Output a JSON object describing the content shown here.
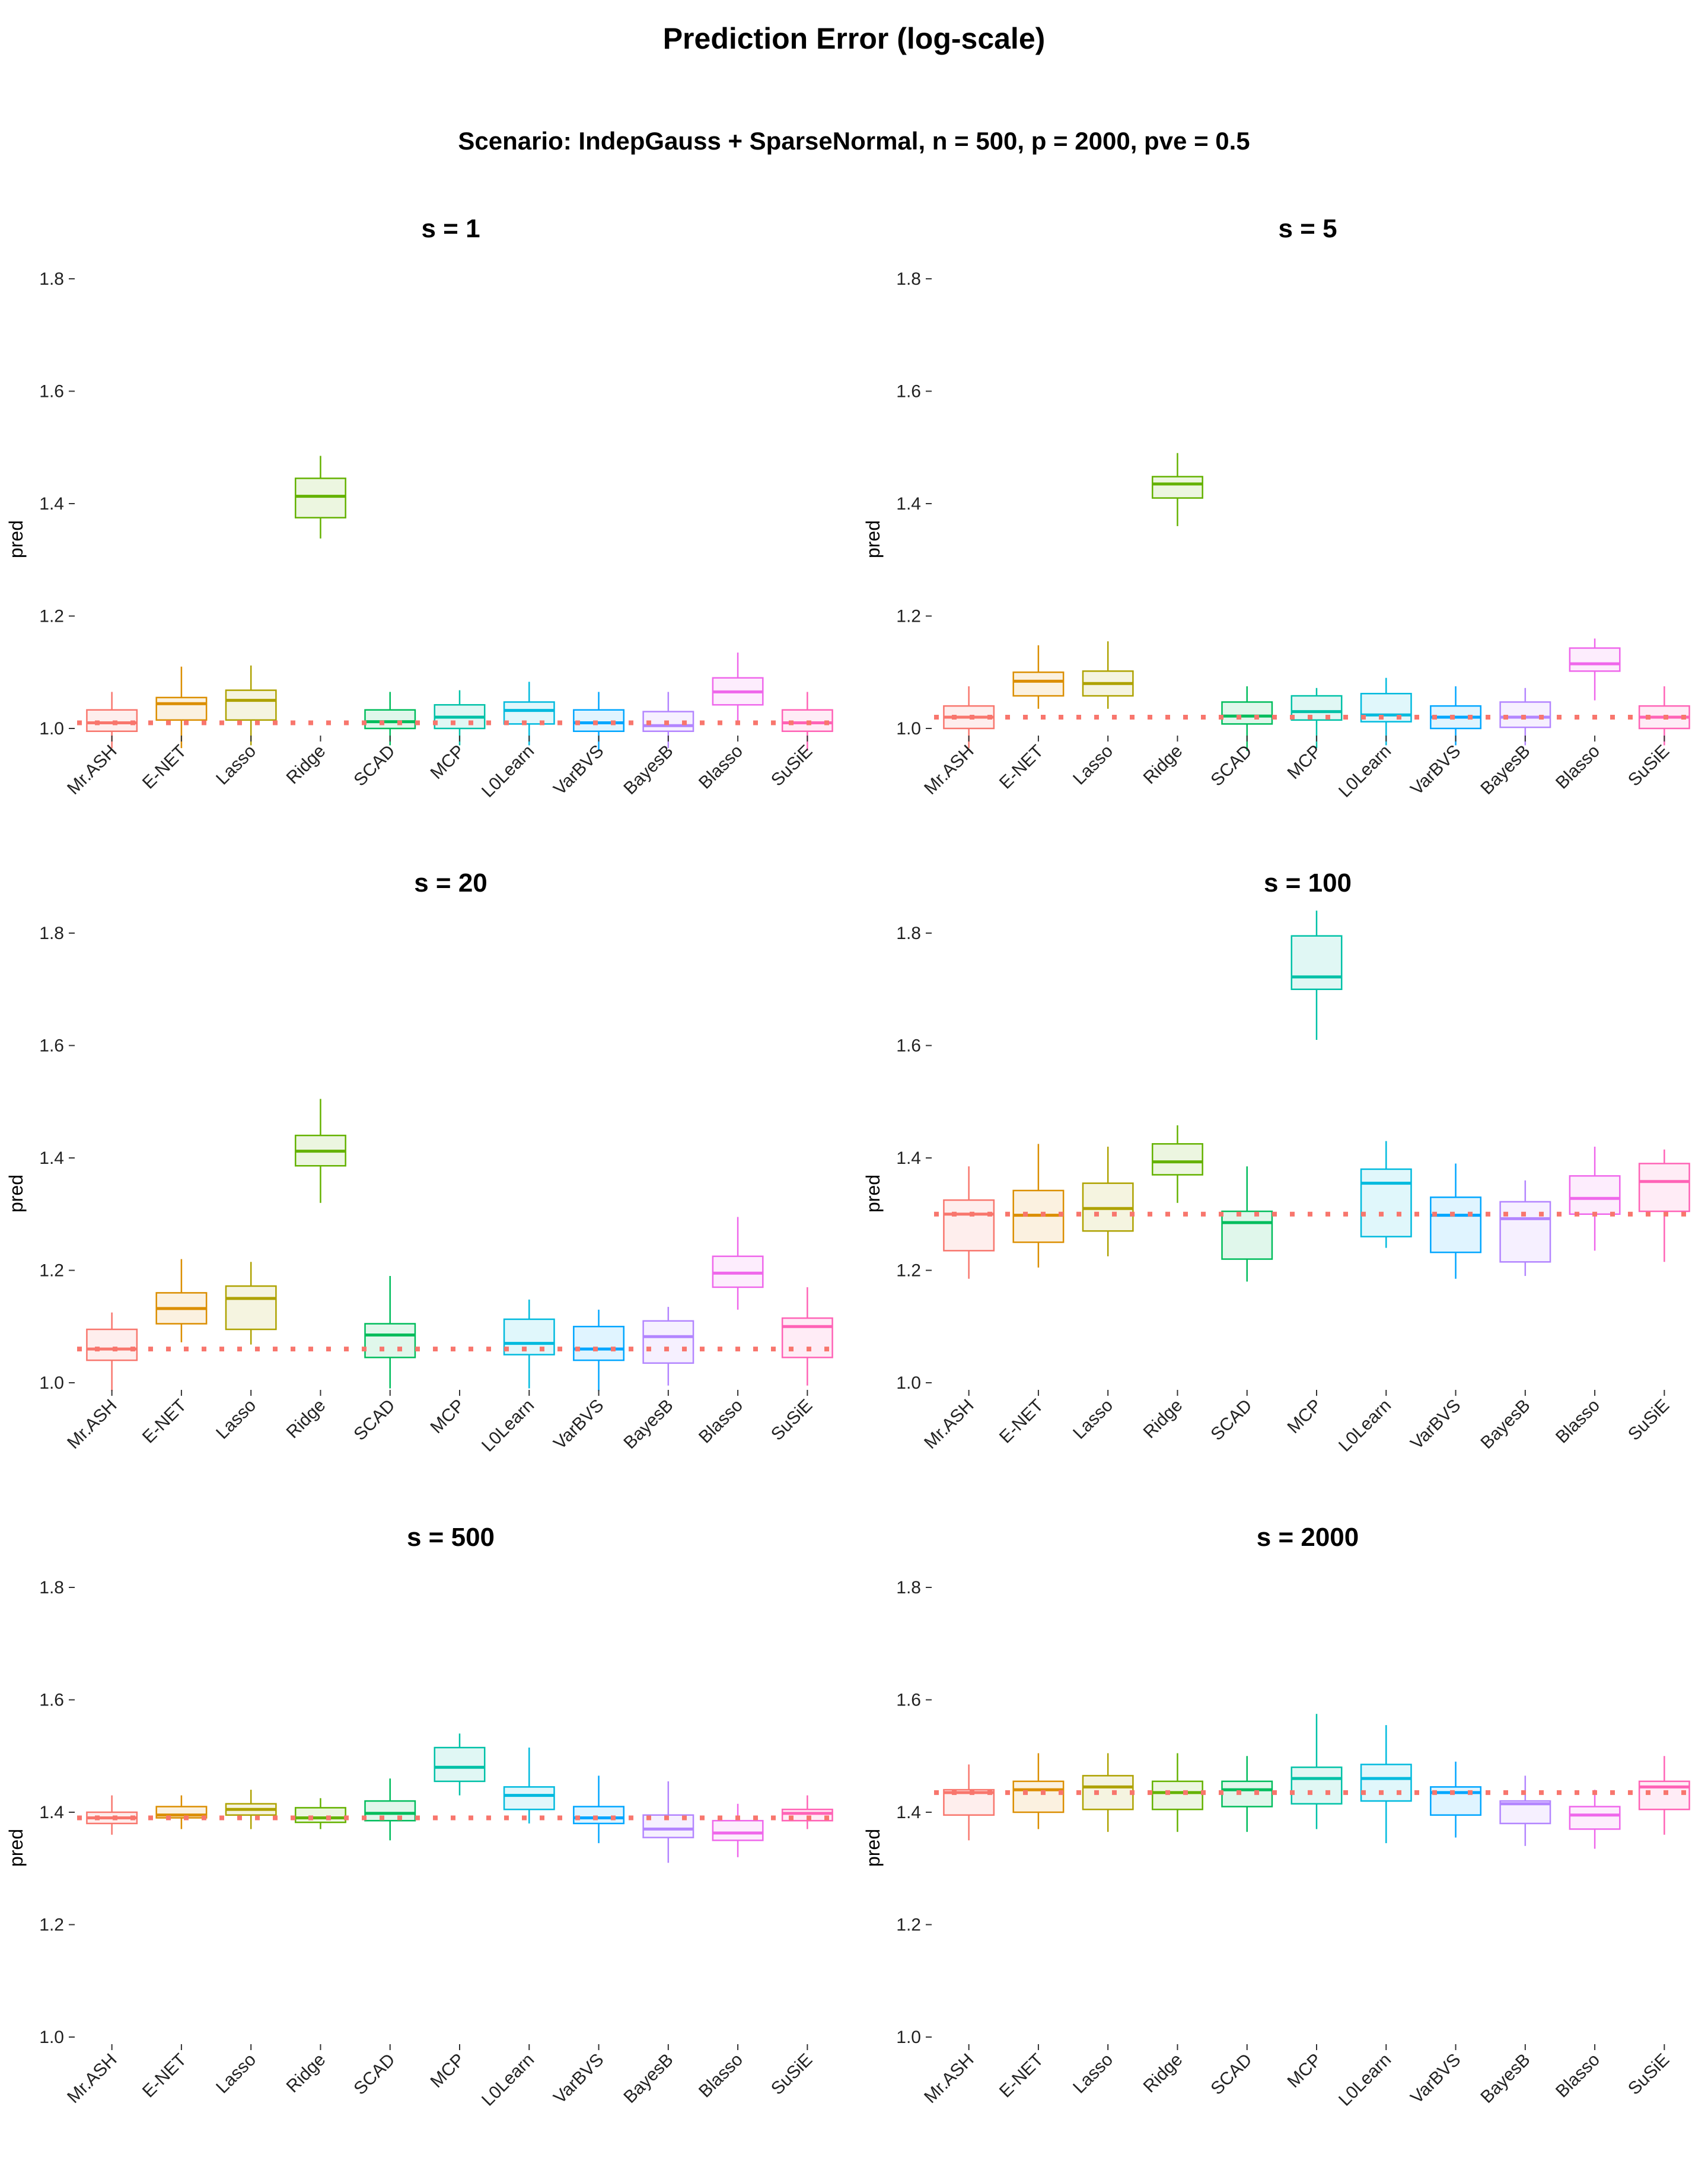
{
  "title": "Prediction Error (log-scale)",
  "subtitle": "Scenario: IndepGauss + SparseNormal, n = 500, p = 2000, pve = 0.5",
  "chart_data": {
    "type": "boxplot",
    "ylabel": "pred",
    "ylim": [
      1.0,
      1.8
    ],
    "yticks": [
      1.0,
      1.2,
      1.4,
      1.6,
      1.8
    ],
    "ytick_labels": [
      "1.0",
      "1.2",
      "1.4",
      "1.6",
      "1.8"
    ],
    "methods": [
      "Mr.ASH",
      "E-NET",
      "Lasso",
      "Ridge",
      "SCAD",
      "MCP",
      "L0Learn",
      "VarBVS",
      "BayesB",
      "Blasso",
      "SuSiE"
    ],
    "colors": [
      "#F8766D",
      "#DB8E00",
      "#AEA200",
      "#64B200",
      "#00BD5C",
      "#00C1A7",
      "#00BADE",
      "#00A6FF",
      "#B385FF",
      "#EF67EB",
      "#FF63B6"
    ],
    "reference_line_color": "#F8766D",
    "panels": [
      {
        "title": "s = 1",
        "reference": 1.01,
        "boxes": [
          {
            "min": 0.965,
            "q1": 0.995,
            "median": 1.01,
            "q3": 1.033,
            "max": 1.065
          },
          {
            "min": 0.965,
            "q1": 1.015,
            "median": 1.044,
            "q3": 1.055,
            "max": 1.11
          },
          {
            "min": 0.97,
            "q1": 1.015,
            "median": 1.05,
            "q3": 1.068,
            "max": 1.112
          },
          {
            "min": 1.338,
            "q1": 1.375,
            "median": 1.413,
            "q3": 1.445,
            "max": 1.485
          },
          {
            "min": 0.97,
            "q1": 1.0,
            "median": 1.012,
            "q3": 1.033,
            "max": 1.065
          },
          {
            "min": 0.97,
            "q1": 1.0,
            "median": 1.02,
            "q3": 1.042,
            "max": 1.068
          },
          {
            "min": 0.97,
            "q1": 1.008,
            "median": 1.032,
            "q3": 1.047,
            "max": 1.083
          },
          {
            "min": 0.96,
            "q1": 0.995,
            "median": 1.01,
            "q3": 1.033,
            "max": 1.065
          },
          {
            "min": 0.965,
            "q1": 0.995,
            "median": 1.005,
            "q3": 1.03,
            "max": 1.065
          },
          {
            "min": 1.01,
            "q1": 1.042,
            "median": 1.065,
            "q3": 1.09,
            "max": 1.135
          },
          {
            "min": 0.96,
            "q1": 0.995,
            "median": 1.01,
            "q3": 1.033,
            "max": 1.065
          }
        ]
      },
      {
        "title": "s = 5",
        "reference": 1.02,
        "boxes": [
          {
            "min": 0.965,
            "q1": 1.0,
            "median": 1.02,
            "q3": 1.04,
            "max": 1.075
          },
          {
            "min": 1.035,
            "q1": 1.058,
            "median": 1.084,
            "q3": 1.1,
            "max": 1.148
          },
          {
            "min": 1.035,
            "q1": 1.058,
            "median": 1.08,
            "q3": 1.102,
            "max": 1.155
          },
          {
            "min": 1.36,
            "q1": 1.41,
            "median": 1.435,
            "q3": 1.448,
            "max": 1.49
          },
          {
            "min": 0.96,
            "q1": 1.008,
            "median": 1.022,
            "q3": 1.047,
            "max": 1.075
          },
          {
            "min": 0.965,
            "q1": 1.015,
            "median": 1.03,
            "q3": 1.058,
            "max": 1.072
          },
          {
            "min": 0.97,
            "q1": 1.012,
            "median": 1.024,
            "q3": 1.062,
            "max": 1.09
          },
          {
            "min": 0.97,
            "q1": 1.0,
            "median": 1.02,
            "q3": 1.04,
            "max": 1.075
          },
          {
            "min": 0.97,
            "q1": 1.002,
            "median": 1.02,
            "q3": 1.047,
            "max": 1.072
          },
          {
            "min": 1.05,
            "q1": 1.102,
            "median": 1.115,
            "q3": 1.143,
            "max": 1.16
          },
          {
            "min": 0.97,
            "q1": 1.0,
            "median": 1.02,
            "q3": 1.04,
            "max": 1.075
          }
        ]
      },
      {
        "title": "s = 20",
        "reference": 1.06,
        "boxes": [
          {
            "min": 0.985,
            "q1": 1.04,
            "median": 1.06,
            "q3": 1.095,
            "max": 1.125
          },
          {
            "min": 1.072,
            "q1": 1.105,
            "median": 1.132,
            "q3": 1.16,
            "max": 1.22
          },
          {
            "min": 1.068,
            "q1": 1.095,
            "median": 1.15,
            "q3": 1.172,
            "max": 1.215
          },
          {
            "min": 1.32,
            "q1": 1.386,
            "median": 1.412,
            "q3": 1.44,
            "max": 1.505
          },
          {
            "min": 0.99,
            "q1": 1.045,
            "median": 1.085,
            "q3": 1.105,
            "max": 1.19
          },
          {
            "min": 0.99,
            "q1": 1.05,
            "median": 1.07,
            "q3": 1.113,
            "max": 1.148
          },
          {
            "min": 0.985,
            "q1": 1.04,
            "median": 1.06,
            "q3": 1.1,
            "max": 1.13
          },
          {
            "min": 0.995,
            "q1": 1.035,
            "median": 1.082,
            "q3": 1.11,
            "max": 1.135
          },
          {
            "min": 1.13,
            "q1": 1.17,
            "median": 1.195,
            "q3": 1.225,
            "max": 1.295
          },
          {
            "min": 0.995,
            "q1": 1.045,
            "median": 1.1,
            "q3": 1.115,
            "max": 1.17
          }
        ],
        "box_methods": [
          "Mr.ASH",
          "E-NET",
          "Lasso",
          "Ridge",
          "SCAD",
          "L0Learn",
          "VarBVS",
          "BayesB",
          "Blasso",
          "SuSiE"
        ]
      },
      {
        "title": "s = 100",
        "reference": 1.3,
        "boxes": [
          {
            "min": 1.185,
            "q1": 1.235,
            "median": 1.3,
            "q3": 1.325,
            "max": 1.385
          },
          {
            "min": 1.205,
            "q1": 1.25,
            "median": 1.298,
            "q3": 1.342,
            "max": 1.425
          },
          {
            "min": 1.225,
            "q1": 1.27,
            "median": 1.31,
            "q3": 1.355,
            "max": 1.42
          },
          {
            "min": 1.32,
            "q1": 1.37,
            "median": 1.393,
            "q3": 1.425,
            "max": 1.458
          },
          {
            "min": 1.18,
            "q1": 1.22,
            "median": 1.285,
            "q3": 1.305,
            "max": 1.385
          },
          {
            "min": 1.61,
            "q1": 1.7,
            "median": 1.722,
            "q3": 1.795,
            "max": 1.84
          },
          {
            "min": 1.24,
            "q1": 1.26,
            "median": 1.355,
            "q3": 1.38,
            "max": 1.43
          },
          {
            "min": 1.185,
            "q1": 1.232,
            "median": 1.298,
            "q3": 1.33,
            "max": 1.39
          },
          {
            "min": 1.19,
            "q1": 1.215,
            "median": 1.292,
            "q3": 1.322,
            "max": 1.36
          },
          {
            "min": 1.235,
            "q1": 1.3,
            "median": 1.328,
            "q3": 1.368,
            "max": 1.42
          },
          {
            "min": 1.215,
            "q1": 1.305,
            "median": 1.358,
            "q3": 1.39,
            "max": 1.415
          }
        ]
      },
      {
        "title": "s = 500",
        "reference": 1.39,
        "boxes": [
          {
            "min": 1.36,
            "q1": 1.38,
            "median": 1.39,
            "q3": 1.4,
            "max": 1.43
          },
          {
            "min": 1.37,
            "q1": 1.39,
            "median": 1.395,
            "q3": 1.41,
            "max": 1.43
          },
          {
            "min": 1.37,
            "q1": 1.395,
            "median": 1.405,
            "q3": 1.415,
            "max": 1.44
          },
          {
            "min": 1.37,
            "q1": 1.382,
            "median": 1.39,
            "q3": 1.408,
            "max": 1.425
          },
          {
            "min": 1.35,
            "q1": 1.385,
            "median": 1.398,
            "q3": 1.42,
            "max": 1.46
          },
          {
            "min": 1.43,
            "q1": 1.455,
            "median": 1.48,
            "q3": 1.515,
            "max": 1.54
          },
          {
            "min": 1.38,
            "q1": 1.405,
            "median": 1.43,
            "q3": 1.445,
            "max": 1.515
          },
          {
            "min": 1.345,
            "q1": 1.38,
            "median": 1.39,
            "q3": 1.41,
            "max": 1.465
          },
          {
            "min": 1.31,
            "q1": 1.355,
            "median": 1.37,
            "q3": 1.395,
            "max": 1.455
          },
          {
            "min": 1.32,
            "q1": 1.35,
            "median": 1.363,
            "q3": 1.385,
            "max": 1.415
          },
          {
            "min": 1.37,
            "q1": 1.385,
            "median": 1.398,
            "q3": 1.405,
            "max": 1.43
          }
        ]
      },
      {
        "title": "s = 2000",
        "reference": 1.435,
        "boxes": [
          {
            "min": 1.35,
            "q1": 1.395,
            "median": 1.435,
            "q3": 1.44,
            "max": 1.485
          },
          {
            "min": 1.37,
            "q1": 1.4,
            "median": 1.44,
            "q3": 1.455,
            "max": 1.505
          },
          {
            "min": 1.365,
            "q1": 1.405,
            "median": 1.445,
            "q3": 1.465,
            "max": 1.505
          },
          {
            "min": 1.365,
            "q1": 1.405,
            "median": 1.435,
            "q3": 1.455,
            "max": 1.505
          },
          {
            "min": 1.365,
            "q1": 1.41,
            "median": 1.44,
            "q3": 1.455,
            "max": 1.5
          },
          {
            "min": 1.37,
            "q1": 1.415,
            "median": 1.46,
            "q3": 1.48,
            "max": 1.575
          },
          {
            "min": 1.345,
            "q1": 1.42,
            "median": 1.46,
            "q3": 1.485,
            "max": 1.555
          },
          {
            "min": 1.355,
            "q1": 1.395,
            "median": 1.435,
            "q3": 1.445,
            "max": 1.49
          },
          {
            "min": 1.34,
            "q1": 1.38,
            "median": 1.415,
            "q3": 1.42,
            "max": 1.465
          },
          {
            "min": 1.335,
            "q1": 1.37,
            "median": 1.395,
            "q3": 1.41,
            "max": 1.44
          },
          {
            "min": 1.36,
            "q1": 1.405,
            "median": 1.445,
            "q3": 1.455,
            "max": 1.5
          }
        ]
      }
    ]
  }
}
